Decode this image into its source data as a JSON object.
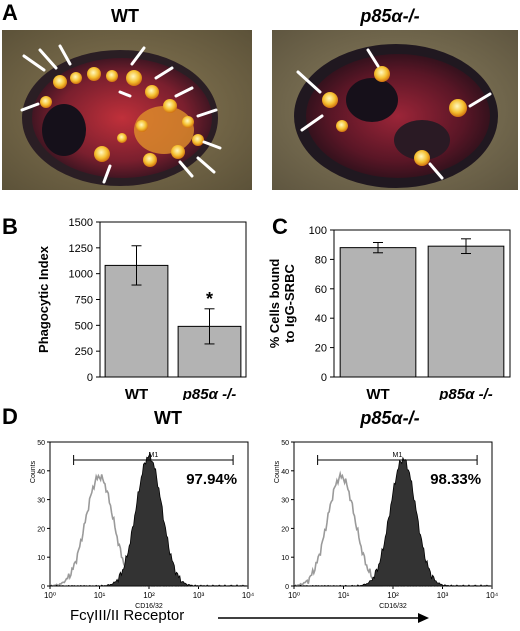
{
  "panels": {
    "A": {
      "letter": "A",
      "left_title": "WT",
      "right_title": "p85α-/-"
    },
    "B": {
      "letter": "B"
    },
    "C": {
      "letter": "C"
    },
    "D": {
      "letter": "D",
      "left_title": "WT",
      "right_title": "p85α-/-",
      "x_axis_caption": "FcγIII/II Receptor"
    }
  },
  "chart_data": [
    {
      "id": "B",
      "type": "bar",
      "ylabel": "Phagocytic Index",
      "categories": [
        "WT",
        "p85α -/-"
      ],
      "values": [
        1080,
        490
      ],
      "errors": [
        190,
        170
      ],
      "ylim": [
        0,
        1500
      ],
      "yticks": [
        "0",
        "250",
        "500",
        "750",
        "1000",
        "1250",
        "1500"
      ],
      "annotation": "*",
      "bar_color": "#b3b3b3"
    },
    {
      "id": "C",
      "type": "bar",
      "ylabel": "% Cells bound to IgG-SRBC",
      "categories": [
        "WT",
        "p85α -/-"
      ],
      "values": [
        88,
        89
      ],
      "errors": [
        3.5,
        5
      ],
      "ylim": [
        0,
        100
      ],
      "yticks": [
        "0",
        "20",
        "40",
        "60",
        "80",
        "100"
      ],
      "bar_color": "#b3b3b3"
    },
    {
      "id": "D-WT",
      "type": "area",
      "ylabel": "Counts",
      "xlabel": "CD16/32",
      "xscale": "log",
      "xlim": [
        1,
        10000
      ],
      "ylim": [
        0,
        50
      ],
      "xticks": [
        "10⁰",
        "10¹",
        "10²",
        "10³",
        "10⁴"
      ],
      "yticks": [
        "0",
        "10",
        "20",
        "30",
        "40",
        "50"
      ],
      "gate_label": "M1",
      "gate_range": [
        3,
        5000
      ],
      "gate_percent": "97.94%",
      "series": [
        {
          "role": "control",
          "style": "grey outline",
          "peak_x": 10,
          "peak_y": 38,
          "width_decades": 0.28
        },
        {
          "role": "stained",
          "style": "black filled",
          "peak_x": 100,
          "peak_y": 45,
          "width_decades": 0.26
        }
      ]
    },
    {
      "id": "D-KO",
      "type": "area",
      "ylabel": "Counts",
      "xlabel": "CD16/32",
      "xscale": "log",
      "xlim": [
        1,
        10000
      ],
      "ylim": [
        0,
        50
      ],
      "xticks": [
        "10⁰",
        "10¹",
        "10²",
        "10³",
        "10⁴"
      ],
      "yticks": [
        "0",
        "10",
        "20",
        "30",
        "40",
        "50"
      ],
      "gate_label": "M1",
      "gate_range": [
        3,
        5000
      ],
      "gate_percent": "98.33%",
      "series": [
        {
          "role": "control",
          "style": "grey outline",
          "peak_x": 9,
          "peak_y": 38,
          "width_decades": 0.28
        },
        {
          "role": "stained",
          "style": "black filled",
          "peak_x": 160,
          "peak_y": 44,
          "width_decades": 0.26
        }
      ]
    }
  ]
}
